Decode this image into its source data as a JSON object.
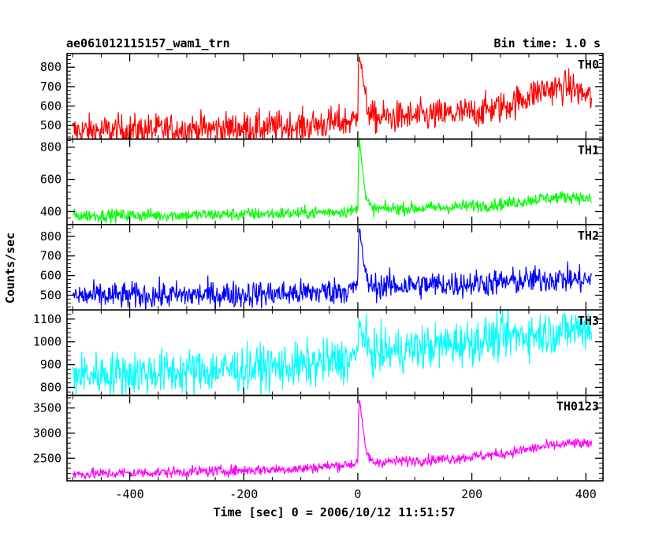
{
  "header": {
    "title": "ae061012115157_wam1_trn",
    "bin_time": "Bin time: 1.0 s"
  },
  "chart_data": {
    "type": "line",
    "xlabel": "Time [sec] 0 = 2006/10/12 11:51:57",
    "ylabel": "Counts/sec",
    "xlim": [
      -510,
      430
    ],
    "x_ticks": [
      -400,
      -200,
      0,
      200,
      400
    ],
    "x_range_data": [
      -500,
      410
    ],
    "bin_time_s": 1.0,
    "panels": [
      {
        "name": "TH0",
        "color": "#ff0000",
        "ylim": [
          430,
          870
        ],
        "y_ticks": [
          500,
          600,
          700,
          800
        ],
        "profile": [
          [
            -500,
            470
          ],
          [
            -300,
            480
          ],
          [
            -100,
            495
          ],
          [
            -5,
            525
          ],
          [
            0,
            560
          ],
          [
            1,
            830
          ],
          [
            3,
            870
          ],
          [
            8,
            760
          ],
          [
            14,
            620
          ],
          [
            25,
            540
          ],
          [
            100,
            545
          ],
          [
            200,
            565
          ],
          [
            260,
            600
          ],
          [
            320,
            680
          ],
          [
            370,
            700
          ],
          [
            410,
            640
          ]
        ],
        "noise": 42
      },
      {
        "name": "TH1",
        "color": "#00ff00",
        "ylim": [
          320,
          850
        ],
        "y_ticks": [
          400,
          600,
          800
        ],
        "profile": [
          [
            -500,
            375
          ],
          [
            -300,
            378
          ],
          [
            -100,
            390
          ],
          [
            -5,
            405
          ],
          [
            0,
            430
          ],
          [
            1,
            700
          ],
          [
            3,
            840
          ],
          [
            8,
            680
          ],
          [
            14,
            480
          ],
          [
            25,
            415
          ],
          [
            150,
            425
          ],
          [
            250,
            445
          ],
          [
            320,
            480
          ],
          [
            380,
            495
          ],
          [
            410,
            470
          ]
        ],
        "noise": 20
      },
      {
        "name": "TH2",
        "color": "#0000ff",
        "ylim": [
          425,
          860
        ],
        "y_ticks": [
          500,
          600,
          700,
          800
        ],
        "profile": [
          [
            -500,
            495
          ],
          [
            -300,
            500
          ],
          [
            -100,
            510
          ],
          [
            -5,
            530
          ],
          [
            0,
            560
          ],
          [
            1,
            780
          ],
          [
            3,
            850
          ],
          [
            8,
            720
          ],
          [
            14,
            590
          ],
          [
            25,
            545
          ],
          [
            150,
            555
          ],
          [
            250,
            565
          ],
          [
            350,
            585
          ],
          [
            410,
            575
          ]
        ],
        "noise": 35
      },
      {
        "name": "TH3",
        "color": "#00ffff",
        "ylim": [
          765,
          1140
        ],
        "y_ticks": [
          800,
          900,
          1000,
          1100
        ],
        "profile": [
          [
            -500,
            855
          ],
          [
            -300,
            870
          ],
          [
            -100,
            895
          ],
          [
            -5,
            925
          ],
          [
            0,
            950
          ],
          [
            2,
            1120
          ],
          [
            5,
            1060
          ],
          [
            12,
            990
          ],
          [
            25,
            950
          ],
          [
            150,
            985
          ],
          [
            250,
            1020
          ],
          [
            350,
            1045
          ],
          [
            410,
            1065
          ]
        ],
        "noise": 50
      },
      {
        "name": "TH0123",
        "color": "#ff00ff",
        "ylim": [
          2050,
          3750
        ],
        "y_ticks": [
          2500,
          3000,
          3500
        ],
        "profile": [
          [
            -500,
            2180
          ],
          [
            -300,
            2230
          ],
          [
            -100,
            2290
          ],
          [
            -5,
            2390
          ],
          [
            0,
            2480
          ],
          [
            1,
            3300
          ],
          [
            3,
            3650
          ],
          [
            8,
            3200
          ],
          [
            14,
            2650
          ],
          [
            25,
            2420
          ],
          [
            150,
            2480
          ],
          [
            250,
            2580
          ],
          [
            320,
            2720
          ],
          [
            380,
            2800
          ],
          [
            410,
            2760
          ]
        ],
        "noise": 55
      }
    ]
  }
}
